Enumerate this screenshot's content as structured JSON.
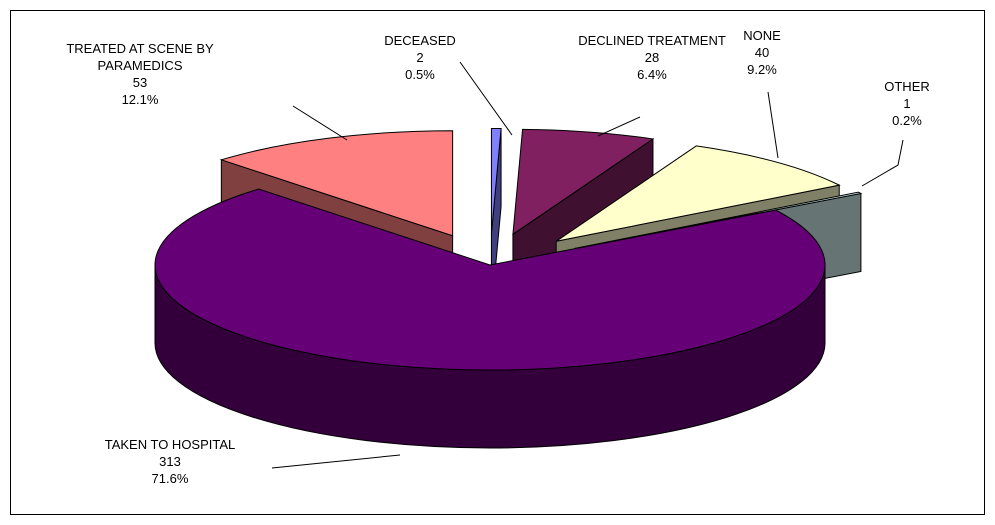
{
  "chart_data": {
    "type": "pie3d",
    "categories": [
      "DECEASED",
      "DECLINED TREATMENT",
      "NONE",
      "OTHER",
      "TAKEN TO HOSPITAL",
      "TREATED AT SCENE BY PARAMEDICS"
    ],
    "values": [
      2,
      28,
      40,
      1,
      313,
      53
    ],
    "percent_labels": [
      "0.5%",
      "6.4%",
      "9.2%",
      "0.2%",
      "71.6%",
      "12.1%"
    ],
    "colors": [
      "#8080ff",
      "#802060",
      "#ffffcc",
      "#cce8e8",
      "#660077",
      "#ff8080"
    ]
  }
}
